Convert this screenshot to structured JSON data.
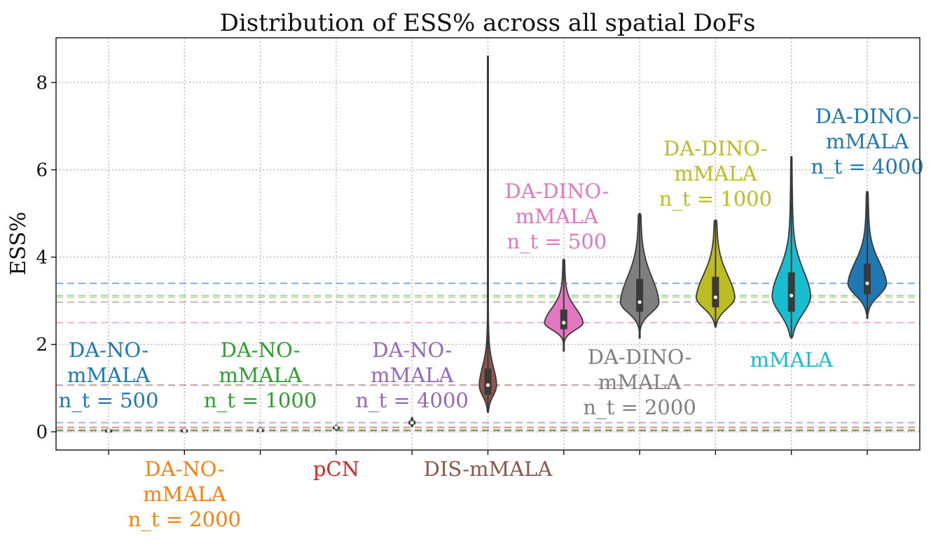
{
  "chart_data": {
    "type": "violin",
    "title": "Distribution of ESS% across all spatial DoFs",
    "xlabel": "",
    "ylabel": "ESS%",
    "ylim": [
      -0.45,
      9.0
    ],
    "yticks": [
      0,
      2,
      4,
      6,
      8
    ],
    "grid": true,
    "series": [
      {
        "name": "DA-NO-mMALA n_t = 500",
        "lines": [
          "DA-NO-",
          "mMALA",
          "n_t = 500"
        ],
        "color": "#1f77b4",
        "label_pos": "above",
        "min": 0.0,
        "q1": 0.01,
        "median": 0.03,
        "q3": 0.05,
        "max": 0.06,
        "width_scale": 0.06,
        "mean": 0.03
      },
      {
        "name": "DA-NO-mMALA n_t = 2000",
        "lines": [
          "DA-NO-",
          "mMALA",
          "n_t = 2000"
        ],
        "color": "#ff7f0e",
        "label_pos": "below",
        "min": 0.0,
        "q1": 0.01,
        "median": 0.03,
        "q3": 0.05,
        "max": 0.06,
        "width_scale": 0.06,
        "mean": 0.03
      },
      {
        "name": "DA-NO-mMALA n_t = 1000",
        "lines": [
          "DA-NO-",
          "mMALA",
          "n_t = 1000"
        ],
        "color": "#2ca02c",
        "label_pos": "above",
        "min": 0.01,
        "q1": 0.02,
        "median": 0.04,
        "q3": 0.06,
        "max": 0.07,
        "width_scale": 0.06,
        "mean": 0.04
      },
      {
        "name": "pCN",
        "lines": [
          "pCN"
        ],
        "color": "#d62728",
        "label_pos": "below",
        "min": 0.04,
        "q1": 0.07,
        "median": 0.1,
        "q3": 0.12,
        "max": 0.15,
        "width_scale": 0.06,
        "mean": 0.1
      },
      {
        "name": "DA-NO-mMALA n_t = 4000",
        "lines": [
          "DA-NO-",
          "mMALA",
          "n_t = 4000"
        ],
        "color": "#9467bd",
        "label_pos": "above",
        "min": 0.12,
        "q1": 0.17,
        "median": 0.21,
        "q3": 0.25,
        "max": 0.32,
        "width_scale": 0.06,
        "mean": 0.21
      },
      {
        "name": "DIS-mMALA",
        "lines": [
          "DIS-mMALA"
        ],
        "color": "#8c564b",
        "label_pos": "below",
        "min": 0.45,
        "q1": 0.85,
        "median": 1.07,
        "q3": 1.45,
        "max": 8.6,
        "width_scale": 0.25,
        "mean": 1.07
      },
      {
        "name": "DA-DINO-mMALA n_t = 500",
        "lines": [
          "DA-DINO-",
          "mMALA",
          "n_t = 500"
        ],
        "color": "#e377c2",
        "label_pos": "above",
        "min": 1.85,
        "q1": 2.35,
        "median": 2.5,
        "q3": 2.8,
        "max": 3.95,
        "width_scale": 0.55,
        "mean": 2.5
      },
      {
        "name": "DA-DINO-mMALA n_t = 2000",
        "lines": [
          "DA-DINO-",
          "mMALA",
          "n_t = 2000"
        ],
        "color": "#7f7f7f",
        "label_pos": "below",
        "min": 2.15,
        "q1": 2.75,
        "median": 2.97,
        "q3": 3.5,
        "max": 5.0,
        "width_scale": 0.55,
        "mean": 2.97
      },
      {
        "name": "DA-DINO-mMALA n_t = 1000",
        "lines": [
          "DA-DINO-",
          "mMALA",
          "n_t = 1000"
        ],
        "color": "#bcbd22",
        "label_pos": "above",
        "min": 2.4,
        "q1": 2.85,
        "median": 3.08,
        "q3": 3.55,
        "max": 4.85,
        "width_scale": 0.55,
        "mean": 3.08
      },
      {
        "name": "mMALA",
        "lines": [
          "mMALA"
        ],
        "color": "#17becf",
        "label_pos": "below",
        "min": 2.15,
        "q1": 2.75,
        "median": 3.12,
        "q3": 3.65,
        "max": 6.3,
        "width_scale": 0.55,
        "mean": 3.12
      },
      {
        "name": "DA-DINO-mMALA n_t = 4000",
        "lines": [
          "DA-DINO-",
          "mMALA",
          "n_t = 4000"
        ],
        "color": "#1f77b4",
        "label_pos": "above",
        "min": 2.6,
        "q1": 3.15,
        "median": 3.4,
        "q3": 3.85,
        "max": 5.5,
        "width_scale": 0.55,
        "mean": 3.4
      }
    ]
  }
}
